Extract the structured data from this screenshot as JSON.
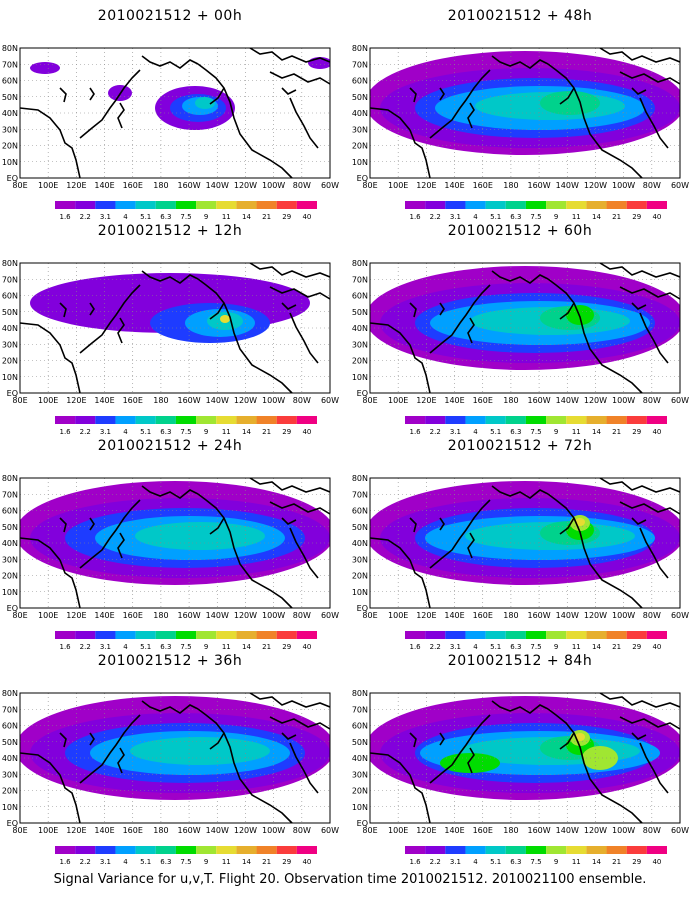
{
  "colorbar": {
    "labels": [
      "1.6",
      "2.2",
      "3.1",
      "4",
      "5.1",
      "6.3",
      "7.5",
      "9",
      "11",
      "14",
      "21",
      "29",
      "40"
    ],
    "colors": [
      "#a000c8",
      "#8200dc",
      "#1e3cff",
      "#00a0ff",
      "#00c8c8",
      "#00d28c",
      "#00dc00",
      "#a0e632",
      "#e6dc32",
      "#e6af2d",
      "#f08228",
      "#fa3c3c",
      "#f00082"
    ]
  },
  "axes": {
    "lon_labels": [
      "80E",
      "100E",
      "120E",
      "140E",
      "160E",
      "180",
      "160W",
      "140W",
      "120W",
      "100W",
      "80W",
      "60W"
    ],
    "lat_labels": [
      "EQ",
      "10N",
      "20N",
      "30N",
      "40N",
      "50N",
      "60N",
      "70N",
      "80N"
    ]
  },
  "panels": [
    {
      "title": "2010021512 + 00h",
      "intensity": 0
    },
    {
      "title": "2010021512 + 12h",
      "intensity": 1
    },
    {
      "title": "2010021512 + 24h",
      "intensity": 2
    },
    {
      "title": "2010021512 + 36h",
      "intensity": 3
    },
    {
      "title": "2010021512 + 48h",
      "intensity": 4
    },
    {
      "title": "2010021512 + 60h",
      "intensity": 5
    },
    {
      "title": "2010021512 + 72h",
      "intensity": 6
    },
    {
      "title": "2010021512 + 84h",
      "intensity": 7
    }
  ],
  "footer": "Signal Variance for u,v,T. Flight 20. Observation time 2010021512. 2010021100 ensemble."
}
